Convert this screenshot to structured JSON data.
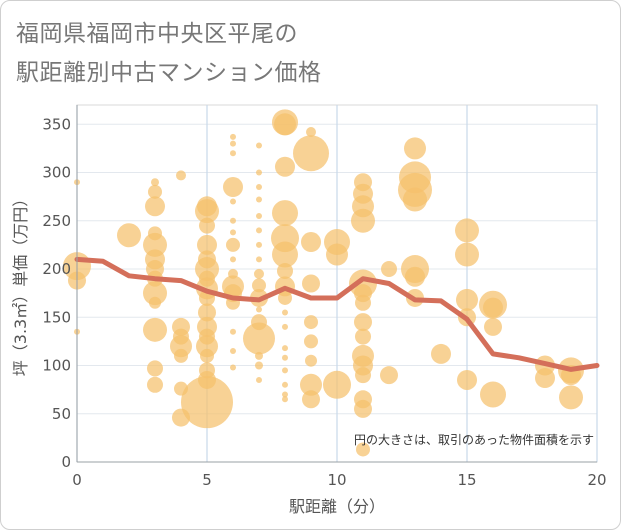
{
  "title_line1": "福岡県福岡市中央区平尾の",
  "title_line2": "駅距離別中古マンション価格",
  "chart_data": {
    "type": "scatter",
    "xlabel": "駅距離（分）",
    "ylabel": "坪（3.3㎡）単価（万円）",
    "note": "円の大きさは、取引のあった物件面積を示す",
    "xlim": [
      0,
      20
    ],
    "ylim": [
      0,
      370
    ],
    "xticks": [
      0,
      5,
      10,
      15,
      20
    ],
    "yticks": [
      0,
      50,
      100,
      150,
      200,
      250,
      300,
      350
    ],
    "grid": true,
    "bubble_color": "#f5c16c",
    "line_color": "#d46f5a",
    "trend_line": {
      "x": [
        0,
        1,
        2,
        3,
        4,
        5,
        6,
        7,
        8,
        9,
        10,
        11,
        12,
        13,
        14,
        15,
        16,
        17,
        18,
        19,
        20
      ],
      "y": [
        210,
        208,
        193,
        190,
        188,
        177,
        170,
        168,
        180,
        170,
        170,
        190,
        185,
        168,
        167,
        148,
        112,
        108,
        102,
        96,
        100
      ]
    },
    "points": [
      {
        "x": 0,
        "y": 290,
        "s": 3
      },
      {
        "x": 0,
        "y": 203,
        "s": 14
      },
      {
        "x": 0,
        "y": 188,
        "s": 9
      },
      {
        "x": 0,
        "y": 135,
        "s": 3
      },
      {
        "x": 2,
        "y": 235,
        "s": 12
      },
      {
        "x": 3,
        "y": 290,
        "s": 4
      },
      {
        "x": 3,
        "y": 280,
        "s": 7
      },
      {
        "x": 3,
        "y": 265,
        "s": 10
      },
      {
        "x": 3,
        "y": 237,
        "s": 7
      },
      {
        "x": 3,
        "y": 225,
        "s": 12
      },
      {
        "x": 3,
        "y": 210,
        "s": 10
      },
      {
        "x": 3,
        "y": 200,
        "s": 9
      },
      {
        "x": 3,
        "y": 190,
        "s": 8
      },
      {
        "x": 3,
        "y": 175,
        "s": 12
      },
      {
        "x": 3,
        "y": 165,
        "s": 6
      },
      {
        "x": 3,
        "y": 137,
        "s": 12
      },
      {
        "x": 3,
        "y": 97,
        "s": 8
      },
      {
        "x": 3,
        "y": 80,
        "s": 8
      },
      {
        "x": 4,
        "y": 297,
        "s": 5
      },
      {
        "x": 4,
        "y": 140,
        "s": 9
      },
      {
        "x": 4,
        "y": 130,
        "s": 8
      },
      {
        "x": 4,
        "y": 120,
        "s": 11
      },
      {
        "x": 4,
        "y": 110,
        "s": 7
      },
      {
        "x": 4,
        "y": 76,
        "s": 7
      },
      {
        "x": 4,
        "y": 46,
        "s": 9
      },
      {
        "x": 5,
        "y": 265,
        "s": 10
      },
      {
        "x": 5,
        "y": 260,
        "s": 12
      },
      {
        "x": 5,
        "y": 245,
        "s": 8
      },
      {
        "x": 5,
        "y": 225,
        "s": 10
      },
      {
        "x": 5,
        "y": 210,
        "s": 9
      },
      {
        "x": 5,
        "y": 200,
        "s": 12
      },
      {
        "x": 5,
        "y": 190,
        "s": 8
      },
      {
        "x": 5,
        "y": 180,
        "s": 11
      },
      {
        "x": 5,
        "y": 170,
        "s": 8
      },
      {
        "x": 5,
        "y": 155,
        "s": 9
      },
      {
        "x": 5,
        "y": 140,
        "s": 10
      },
      {
        "x": 5,
        "y": 130,
        "s": 8
      },
      {
        "x": 5,
        "y": 120,
        "s": 11
      },
      {
        "x": 5,
        "y": 110,
        "s": 7
      },
      {
        "x": 5,
        "y": 95,
        "s": 8
      },
      {
        "x": 5,
        "y": 85,
        "s": 9
      },
      {
        "x": 5,
        "y": 62,
        "s": 26
      },
      {
        "x": 6,
        "y": 337,
        "s": 3
      },
      {
        "x": 6,
        "y": 330,
        "s": 3
      },
      {
        "x": 6,
        "y": 320,
        "s": 3
      },
      {
        "x": 6,
        "y": 285,
        "s": 10
      },
      {
        "x": 6,
        "y": 270,
        "s": 3
      },
      {
        "x": 6,
        "y": 250,
        "s": 3
      },
      {
        "x": 6,
        "y": 238,
        "s": 3
      },
      {
        "x": 6,
        "y": 225,
        "s": 7
      },
      {
        "x": 6,
        "y": 210,
        "s": 3
      },
      {
        "x": 6,
        "y": 195,
        "s": 5
      },
      {
        "x": 6,
        "y": 182,
        "s": 11
      },
      {
        "x": 6,
        "y": 175,
        "s": 9
      },
      {
        "x": 6,
        "y": 165,
        "s": 7
      },
      {
        "x": 6,
        "y": 135,
        "s": 3
      },
      {
        "x": 6,
        "y": 115,
        "s": 3
      },
      {
        "x": 6,
        "y": 98,
        "s": 3
      },
      {
        "x": 7,
        "y": 328,
        "s": 3
      },
      {
        "x": 7,
        "y": 300,
        "s": 3
      },
      {
        "x": 7,
        "y": 285,
        "s": 3
      },
      {
        "x": 7,
        "y": 272,
        "s": 3
      },
      {
        "x": 7,
        "y": 255,
        "s": 3
      },
      {
        "x": 7,
        "y": 240,
        "s": 3
      },
      {
        "x": 7,
        "y": 225,
        "s": 3
      },
      {
        "x": 7,
        "y": 210,
        "s": 3
      },
      {
        "x": 7,
        "y": 195,
        "s": 5
      },
      {
        "x": 7,
        "y": 183,
        "s": 7
      },
      {
        "x": 7,
        "y": 170,
        "s": 9
      },
      {
        "x": 7,
        "y": 158,
        "s": 3
      },
      {
        "x": 7,
        "y": 145,
        "s": 8
      },
      {
        "x": 7,
        "y": 128,
        "s": 16
      },
      {
        "x": 7,
        "y": 110,
        "s": 4
      },
      {
        "x": 7,
        "y": 100,
        "s": 4
      },
      {
        "x": 7,
        "y": 85,
        "s": 3
      },
      {
        "x": 8,
        "y": 350,
        "s": 11
      },
      {
        "x": 8,
        "y": 352,
        "s": 13
      },
      {
        "x": 8,
        "y": 306,
        "s": 10
      },
      {
        "x": 8,
        "y": 258,
        "s": 13
      },
      {
        "x": 8,
        "y": 232,
        "s": 14
      },
      {
        "x": 8,
        "y": 215,
        "s": 13
      },
      {
        "x": 8,
        "y": 198,
        "s": 8
      },
      {
        "x": 8,
        "y": 182,
        "s": 10
      },
      {
        "x": 8,
        "y": 170,
        "s": 7
      },
      {
        "x": 8,
        "y": 155,
        "s": 3
      },
      {
        "x": 8,
        "y": 140,
        "s": 3
      },
      {
        "x": 8,
        "y": 118,
        "s": 3
      },
      {
        "x": 8,
        "y": 108,
        "s": 3
      },
      {
        "x": 8,
        "y": 95,
        "s": 3
      },
      {
        "x": 8,
        "y": 80,
        "s": 3
      },
      {
        "x": 8,
        "y": 70,
        "s": 3
      },
      {
        "x": 8,
        "y": 65,
        "s": 3
      },
      {
        "x": 9,
        "y": 342,
        "s": 5
      },
      {
        "x": 9,
        "y": 320,
        "s": 18
      },
      {
        "x": 9,
        "y": 228,
        "s": 10
      },
      {
        "x": 9,
        "y": 185,
        "s": 9
      },
      {
        "x": 9,
        "y": 145,
        "s": 7
      },
      {
        "x": 9,
        "y": 125,
        "s": 7
      },
      {
        "x": 9,
        "y": 105,
        "s": 6
      },
      {
        "x": 9,
        "y": 80,
        "s": 11
      },
      {
        "x": 9,
        "y": 65,
        "s": 9
      },
      {
        "x": 10,
        "y": 228,
        "s": 13
      },
      {
        "x": 10,
        "y": 215,
        "s": 11
      },
      {
        "x": 10,
        "y": 80,
        "s": 14
      },
      {
        "x": 11,
        "y": 290,
        "s": 9
      },
      {
        "x": 11,
        "y": 278,
        "s": 10
      },
      {
        "x": 11,
        "y": 265,
        "s": 11
      },
      {
        "x": 11,
        "y": 250,
        "s": 12
      },
      {
        "x": 11,
        "y": 185,
        "s": 14
      },
      {
        "x": 11,
        "y": 175,
        "s": 9
      },
      {
        "x": 11,
        "y": 165,
        "s": 8
      },
      {
        "x": 11,
        "y": 145,
        "s": 9
      },
      {
        "x": 11,
        "y": 130,
        "s": 8
      },
      {
        "x": 11,
        "y": 110,
        "s": 11
      },
      {
        "x": 11,
        "y": 100,
        "s": 10
      },
      {
        "x": 11,
        "y": 90,
        "s": 8
      },
      {
        "x": 11,
        "y": 65,
        "s": 9
      },
      {
        "x": 11,
        "y": 55,
        "s": 9
      },
      {
        "x": 11,
        "y": 13,
        "s": 7
      },
      {
        "x": 12,
        "y": 200,
        "s": 8
      },
      {
        "x": 12,
        "y": 90,
        "s": 9
      },
      {
        "x": 13,
        "y": 325,
        "s": 11
      },
      {
        "x": 13,
        "y": 295,
        "s": 16
      },
      {
        "x": 13,
        "y": 282,
        "s": 17
      },
      {
        "x": 13,
        "y": 272,
        "s": 12
      },
      {
        "x": 13,
        "y": 200,
        "s": 14
      },
      {
        "x": 13,
        "y": 192,
        "s": 10
      },
      {
        "x": 13,
        "y": 170,
        "s": 9
      },
      {
        "x": 14,
        "y": 112,
        "s": 10
      },
      {
        "x": 15,
        "y": 240,
        "s": 12
      },
      {
        "x": 15,
        "y": 215,
        "s": 12
      },
      {
        "x": 15,
        "y": 168,
        "s": 11
      },
      {
        "x": 15,
        "y": 150,
        "s": 9
      },
      {
        "x": 15,
        "y": 85,
        "s": 10
      },
      {
        "x": 16,
        "y": 163,
        "s": 14
      },
      {
        "x": 16,
        "y": 160,
        "s": 10
      },
      {
        "x": 16,
        "y": 140,
        "s": 9
      },
      {
        "x": 16,
        "y": 70,
        "s": 13
      },
      {
        "x": 18,
        "y": 100,
        "s": 10
      },
      {
        "x": 18,
        "y": 87,
        "s": 10
      },
      {
        "x": 19,
        "y": 95,
        "s": 13
      },
      {
        "x": 19,
        "y": 90,
        "s": 10
      },
      {
        "x": 19,
        "y": 67,
        "s": 12
      }
    ]
  }
}
